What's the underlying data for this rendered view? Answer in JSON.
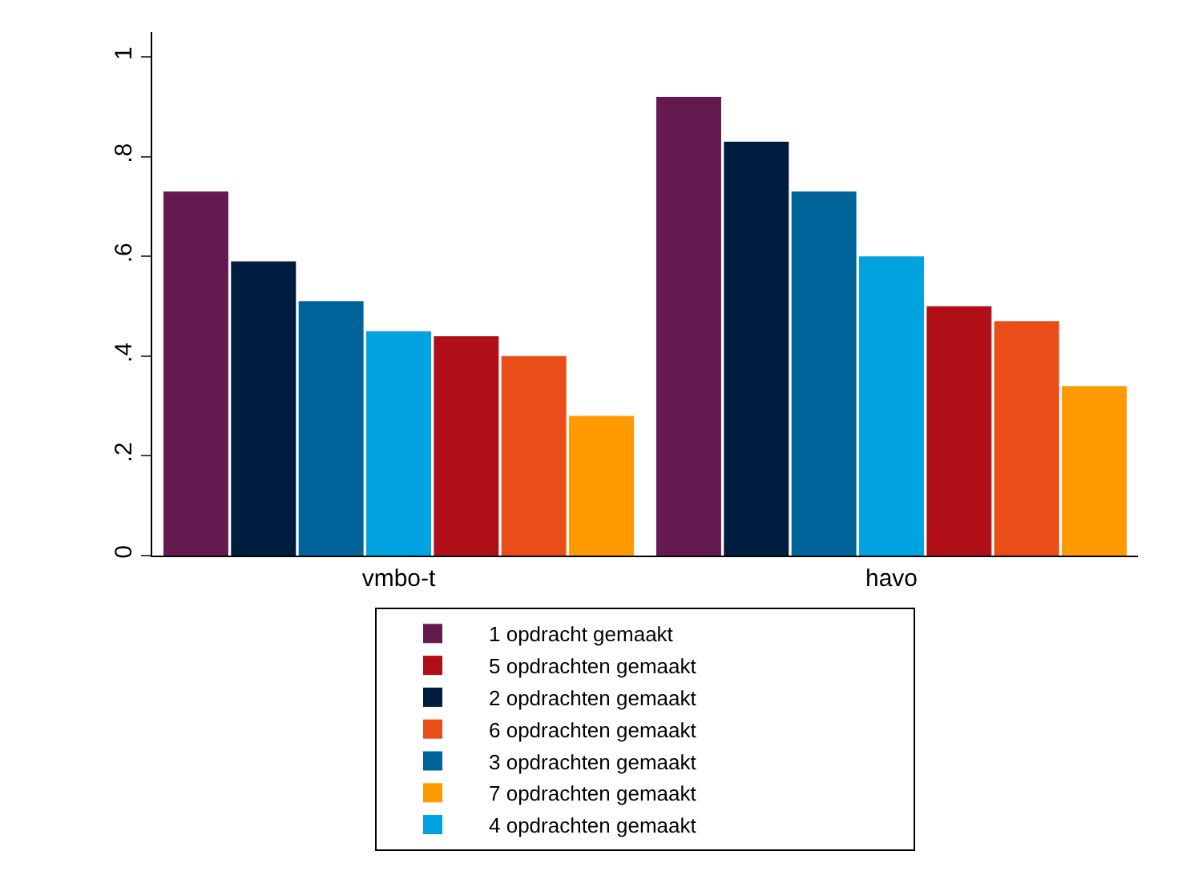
{
  "chart_data": {
    "type": "bar",
    "categories": [
      "vmbo-t",
      "havo"
    ],
    "series": [
      {
        "name": "1 opdracht gemaakt",
        "color": "#651a4f",
        "values": [
          0.73,
          0.92
        ]
      },
      {
        "name": "2 opdrachten gemaakt",
        "color": "#001d3f",
        "values": [
          0.59,
          0.83
        ]
      },
      {
        "name": "3 opdrachten gemaakt",
        "color": "#00639a",
        "values": [
          0.51,
          0.73
        ]
      },
      {
        "name": "4 opdrachten gemaakt",
        "color": "#00a3e0",
        "values": [
          0.45,
          0.6
        ]
      },
      {
        "name": "5 opdrachten gemaakt",
        "color": "#b10f17",
        "values": [
          0.44,
          0.5
        ]
      },
      {
        "name": "6 opdrachten gemaakt",
        "color": "#e94e18",
        "values": [
          0.4,
          0.47
        ]
      },
      {
        "name": "7 opdrachten gemaakt",
        "color": "#ff9900",
        "values": [
          0.28,
          0.34
        ]
      }
    ],
    "ylim": [
      0,
      1.05
    ],
    "yticks": [
      0,
      {
        "value": 0.2,
        "label": ".2"
      },
      {
        "value": 0.4,
        "label": ".4"
      },
      {
        "value": 0.6,
        "label": ".6"
      },
      {
        "value": 0.8,
        "label": ".8"
      },
      1
    ],
    "grid": false,
    "legend": "bottom"
  }
}
